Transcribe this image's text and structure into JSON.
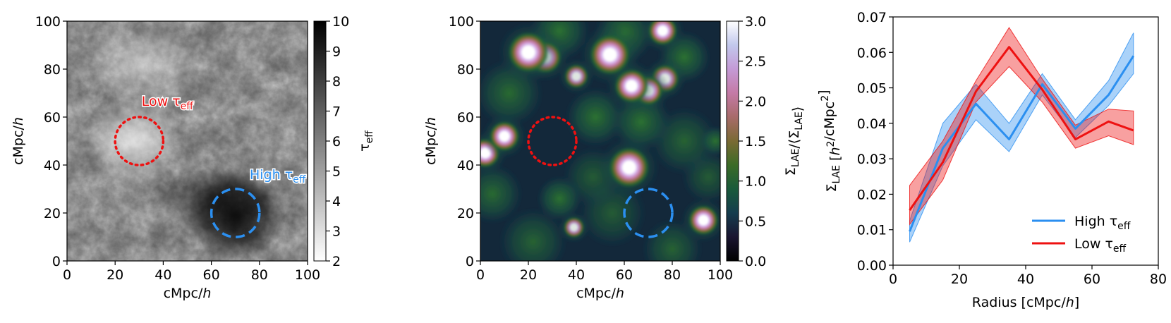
{
  "chart_data": [
    {
      "type": "heatmap",
      "xlabel": "cMpc/h",
      "ylabel": "cMpc/h",
      "xlim": [
        0,
        100
      ],
      "ylim": [
        0,
        100
      ],
      "xticks": [
        "0",
        "20",
        "40",
        "60",
        "80",
        "100"
      ],
      "yticks": [
        "0",
        "20",
        "40",
        "60",
        "80",
        "100"
      ],
      "colormap": "gray_r",
      "colorbar": {
        "label": "τ_eff",
        "range": [
          2,
          10
        ],
        "ticks": [
          "2",
          "3",
          "4",
          "5",
          "6",
          "7",
          "8",
          "9",
          "10"
        ]
      },
      "annotations": [
        {
          "label": "Low τ_eff",
          "center": [
            30,
            50
          ],
          "radius": 10,
          "style": "dotted",
          "color": "#ee1111"
        },
        {
          "label": "High τ_eff",
          "center": [
            70,
            20
          ],
          "radius": 10,
          "style": "dashed",
          "color": "#2b8ff0"
        }
      ]
    },
    {
      "type": "heatmap",
      "xlabel": "cMpc/h",
      "ylabel": "cMpc/h",
      "xlim": [
        0,
        100
      ],
      "ylim": [
        0,
        100
      ],
      "xticks": [
        "0",
        "20",
        "40",
        "60",
        "80",
        "100"
      ],
      "yticks": [
        "0",
        "20",
        "40",
        "60",
        "80",
        "100"
      ],
      "colormap": "cubehelix",
      "colorbar": {
        "label": "Σ_LAE/⟨Σ_LAE⟩",
        "range": [
          0,
          3
        ],
        "ticks": [
          "0.0",
          "0.5",
          "1.0",
          "1.5",
          "2.0",
          "2.5",
          "3.0"
        ]
      },
      "blobs": [
        {
          "x": 20,
          "y": 87,
          "strength": 3.6,
          "size": 5.5
        },
        {
          "x": 27,
          "y": 85,
          "strength": 2.6,
          "size": 5
        },
        {
          "x": 54,
          "y": 86,
          "strength": 3.6,
          "size": 5.5
        },
        {
          "x": 76,
          "y": 96,
          "strength": 2.6,
          "size": 4.5
        },
        {
          "x": 40,
          "y": 77,
          "strength": 2.0,
          "size": 4
        },
        {
          "x": 63,
          "y": 73,
          "strength": 3.0,
          "size": 5
        },
        {
          "x": 70,
          "y": 71,
          "strength": 2.6,
          "size": 4.5
        },
        {
          "x": 77,
          "y": 76,
          "strength": 1.6,
          "size": 5
        },
        {
          "x": 10,
          "y": 52,
          "strength": 2.8,
          "size": 4.5
        },
        {
          "x": 2,
          "y": 45,
          "strength": 2.6,
          "size": 4.5
        },
        {
          "x": 62,
          "y": 39,
          "strength": 3.6,
          "size": 5.5
        },
        {
          "x": 93,
          "y": 17,
          "strength": 2.8,
          "size": 4.5
        },
        {
          "x": 39,
          "y": 14,
          "strength": 2.0,
          "size": 3.5
        },
        {
          "x": 98,
          "y": 50,
          "strength": 1.2,
          "size": 4
        },
        {
          "x": 33,
          "y": 96,
          "strength": 1.0,
          "size": 8
        },
        {
          "x": 60,
          "y": 95,
          "strength": 0.9,
          "size": 8
        },
        {
          "x": 85,
          "y": 85,
          "strength": 0.8,
          "size": 7
        },
        {
          "x": 48,
          "y": 60,
          "strength": 0.8,
          "size": 8
        },
        {
          "x": 67,
          "y": 58,
          "strength": 0.9,
          "size": 8
        },
        {
          "x": 12,
          "y": 70,
          "strength": 0.7,
          "size": 9
        },
        {
          "x": 5,
          "y": 28,
          "strength": 0.7,
          "size": 8
        },
        {
          "x": 22,
          "y": 8,
          "strength": 0.6,
          "size": 9
        },
        {
          "x": 33,
          "y": 26,
          "strength": 0.8,
          "size": 6
        },
        {
          "x": 55,
          "y": 20,
          "strength": 0.5,
          "size": 9
        },
        {
          "x": 85,
          "y": 50,
          "strength": 0.6,
          "size": 9
        },
        {
          "x": 95,
          "y": 35,
          "strength": 0.5,
          "size": 7
        },
        {
          "x": 80,
          "y": 5,
          "strength": 0.6,
          "size": 8
        },
        {
          "x": 47,
          "y": 35,
          "strength": 0.5,
          "size": 8
        }
      ],
      "annotations": [
        {
          "center": [
            30,
            50
          ],
          "radius": 10,
          "style": "dotted",
          "color": "#ee1111"
        },
        {
          "center": [
            70,
            20
          ],
          "radius": 10,
          "style": "dashed",
          "color": "#2b8ff0"
        }
      ]
    },
    {
      "type": "line",
      "xlabel": "Radius [cMpc/h]",
      "ylabel": "Σ_LAE [h²/cMpc²]",
      "xlim": [
        0,
        80
      ],
      "ylim": [
        0,
        0.07
      ],
      "xticks": [
        "0",
        "20",
        "40",
        "60",
        "80"
      ],
      "yticks": [
        "0.00",
        "0.01",
        "0.02",
        "0.03",
        "0.04",
        "0.05",
        "0.06",
        "0.07"
      ],
      "legend_position": "lower-right",
      "x": [
        5,
        15,
        25,
        35,
        45,
        55,
        65,
        72.5
      ],
      "series": [
        {
          "name": "High τ_eff",
          "color": "#2b8ff0",
          "values": [
            0.0095,
            0.033,
            0.0455,
            0.0355,
            0.051,
            0.0385,
            0.048,
            0.059
          ],
          "lower": [
            0.0065,
            0.028,
            0.041,
            0.032,
            0.048,
            0.036,
            0.045,
            0.054
          ],
          "upper": [
            0.0125,
            0.04,
            0.051,
            0.04,
            0.054,
            0.041,
            0.052,
            0.0655
          ]
        },
        {
          "name": "Low τ_eff",
          "color": "#ee1111",
          "values": [
            0.0155,
            0.029,
            0.049,
            0.0615,
            0.0495,
            0.0355,
            0.0405,
            0.038
          ],
          "lower": [
            0.0115,
            0.024,
            0.046,
            0.056,
            0.046,
            0.033,
            0.0365,
            0.034
          ],
          "upper": [
            0.0225,
            0.035,
            0.052,
            0.067,
            0.0525,
            0.0395,
            0.044,
            0.0435
          ]
        }
      ]
    }
  ]
}
